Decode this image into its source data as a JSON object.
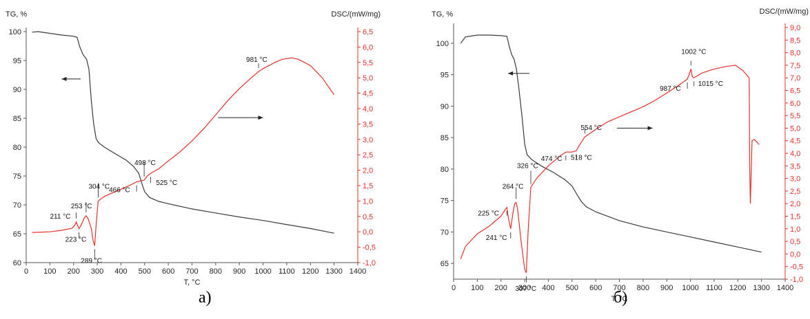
{
  "chart_data": [
    {
      "type": "line",
      "caption": "а)",
      "left_axis_label": "TG, %",
      "right_axis_label": "DSC/(mW/mg)",
      "xlabel": "T, °C",
      "xlim": [
        0,
        1400
      ],
      "x_ticks": [
        "0",
        "100",
        "200",
        "300",
        "400",
        "500",
        "600",
        "700",
        "800",
        "900",
        "1000",
        "1100",
        "1200",
        "1300",
        "1400"
      ],
      "ylim_left": [
        60,
        100
      ],
      "y_ticks_left": [
        "60",
        "65",
        "70",
        "75",
        "80",
        "85",
        "90",
        "95",
        "100"
      ],
      "ylim_right": [
        -1.0,
        6.5
      ],
      "y_ticks_right": [
        "-1,0",
        "-0,5",
        "0,0",
        "0,5",
        "1,0",
        "1,5",
        "2,0",
        "2,5",
        "3,0",
        "3,5",
        "4,0",
        "4,5",
        "5,0",
        "5,5",
        "6,0",
        "6,5"
      ],
      "colors": {
        "tg": "#3a3a3a",
        "dsc": "#e8302a"
      },
      "series": [
        {
          "axis": "left",
          "points": [
            [
              25,
              99.9
            ],
            [
              50,
              100.0
            ],
            [
              100,
              99.7
            ],
            [
              150,
              99.4
            ],
            [
              200,
              99.2
            ],
            [
              215,
              99.0
            ],
            [
              225,
              97.5
            ],
            [
              240,
              96.0
            ],
            [
              255,
              95.2
            ],
            [
              265,
              93.5
            ],
            [
              275,
              88.0
            ],
            [
              285,
              84.0
            ],
            [
              295,
              81.5
            ],
            [
              305,
              80.8
            ],
            [
              330,
              80.0
            ],
            [
              370,
              79.0
            ],
            [
              420,
              77.8
            ],
            [
              450,
              76.8
            ],
            [
              475,
              75.5
            ],
            [
              490,
              73.5
            ],
            [
              500,
              72.3
            ],
            [
              520,
              71.3
            ],
            [
              560,
              70.6
            ],
            [
              600,
              70.2
            ],
            [
              700,
              69.3
            ],
            [
              800,
              68.6
            ],
            [
              900,
              67.9
            ],
            [
              1000,
              67.3
            ],
            [
              1100,
              66.6
            ],
            [
              1200,
              65.9
            ],
            [
              1300,
              65.1
            ]
          ]
        },
        {
          "axis": "right",
          "points": [
            [
              25,
              -0.02
            ],
            [
              100,
              0.0
            ],
            [
              150,
              0.05
            ],
            [
              195,
              0.12
            ],
            [
              208,
              0.25
            ],
            [
              211,
              0.32
            ],
            [
              223,
              0.1
            ],
            [
              232,
              0.22
            ],
            [
              245,
              0.45
            ],
            [
              253,
              0.52
            ],
            [
              262,
              0.42
            ],
            [
              275,
              0.1
            ],
            [
              283,
              -0.3
            ],
            [
              289,
              -0.45
            ],
            [
              296,
              0.3
            ],
            [
              304,
              1.0
            ],
            [
              330,
              1.15
            ],
            [
              360,
              1.25
            ],
            [
              400,
              1.38
            ],
            [
              440,
              1.52
            ],
            [
              466,
              1.62
            ],
            [
              480,
              1.65
            ],
            [
              498,
              1.68
            ],
            [
              510,
              1.8
            ],
            [
              525,
              1.9
            ],
            [
              560,
              2.05
            ],
            [
              600,
              2.3
            ],
            [
              650,
              2.6
            ],
            [
              700,
              2.95
            ],
            [
              750,
              3.35
            ],
            [
              800,
              3.8
            ],
            [
              850,
              4.25
            ],
            [
              900,
              4.65
            ],
            [
              950,
              5.0
            ],
            [
              981,
              5.2
            ],
            [
              1000,
              5.3
            ],
            [
              1050,
              5.5
            ],
            [
              1080,
              5.6
            ],
            [
              1120,
              5.65
            ],
            [
              1150,
              5.6
            ],
            [
              1200,
              5.4
            ],
            [
              1250,
              5.0
            ],
            [
              1300,
              4.45
            ]
          ]
        }
      ],
      "annotations": [
        {
          "text": "211 °C",
          "x": 211,
          "y": 0.32
        },
        {
          "text": "253 °C",
          "x": 253,
          "y": 0.52
        },
        {
          "text": "304 °C",
          "x": 304,
          "y": 1.0
        },
        {
          "text": "223 °C",
          "x": 223,
          "y": 0.1
        },
        {
          "text": "289 °C",
          "x": 289,
          "y": -0.45
        },
        {
          "text": "498 °C",
          "x": 498,
          "y": 1.68
        },
        {
          "text": "466 °C",
          "x": 466,
          "y": 1.62
        },
        {
          "text": "525 °C",
          "x": 525,
          "y": 1.9
        },
        {
          "text": "981 °C",
          "x": 981,
          "y": 5.2
        }
      ],
      "arrows": [
        {
          "direction": "left",
          "x_from": 230,
          "x_to": 150,
          "y_left": 91.8
        },
        {
          "direction": "right",
          "x_from": 810,
          "x_to": 1000,
          "y_left": 85.1
        }
      ]
    },
    {
      "type": "line",
      "caption": "б)",
      "left_axis_label": "TG, %",
      "right_axis_label": "DSC/(mW/mg)",
      "xlabel": "T, °C",
      "xlim": [
        0,
        1400
      ],
      "x_ticks": [
        "0",
        "100",
        "200",
        "300",
        "400",
        "500",
        "600",
        "700",
        "800",
        "900",
        "1000",
        "1100",
        "1200",
        "1300",
        "1400"
      ],
      "ylim_left": [
        62.5,
        102.5
      ],
      "y_ticks_left": [
        "65",
        "70",
        "75",
        "80",
        "85",
        "90",
        "95",
        "100"
      ],
      "ylim_right": [
        -1.0,
        9.0
      ],
      "y_ticks_right": [
        "-1,0",
        "-0,5",
        "0,0",
        "0,5",
        "1,0",
        "1,5",
        "2,0",
        "2,5",
        "3,0",
        "3,5",
        "4,0",
        "4,5",
        "5,0",
        "5,5",
        "6,0",
        "6,5",
        "7,0",
        "7,5",
        "8,0",
        "8,5",
        "9,0"
      ],
      "colors": {
        "tg": "#3a3a3a",
        "dsc": "#e8302a"
      },
      "series": [
        {
          "axis": "left",
          "points": [
            [
              30,
              100.0
            ],
            [
              50,
              101.0
            ],
            [
              100,
              101.3
            ],
            [
              150,
              101.3
            ],
            [
              200,
              101.2
            ],
            [
              225,
              101.1
            ],
            [
              235,
              99.5
            ],
            [
              245,
              98.2
            ],
            [
              255,
              97.5
            ],
            [
              265,
              96.0
            ],
            [
              275,
              93.0
            ],
            [
              290,
              88.0
            ],
            [
              300,
              84.0
            ],
            [
              310,
              82.3
            ],
            [
              330,
              81.5
            ],
            [
              370,
              80.5
            ],
            [
              420,
              79.5
            ],
            [
              470,
              78.3
            ],
            [
              500,
              77.3
            ],
            [
              520,
              76.0
            ],
            [
              540,
              74.8
            ],
            [
              560,
              74.0
            ],
            [
              600,
              73.2
            ],
            [
              700,
              71.8
            ],
            [
              800,
              70.8
            ],
            [
              900,
              70.0
            ],
            [
              1000,
              69.2
            ],
            [
              1100,
              68.4
            ],
            [
              1200,
              67.6
            ],
            [
              1300,
              66.8
            ]
          ]
        },
        {
          "axis": "right",
          "points": [
            [
              30,
              -0.2
            ],
            [
              50,
              0.3
            ],
            [
              100,
              0.8
            ],
            [
              150,
              1.1
            ],
            [
              200,
              1.5
            ],
            [
              220,
              1.8
            ],
            [
              225,
              1.85
            ],
            [
              232,
              1.4
            ],
            [
              241,
              1.0
            ],
            [
              250,
              1.6
            ],
            [
              258,
              2.0
            ],
            [
              264,
              2.05
            ],
            [
              270,
              1.8
            ],
            [
              285,
              0.5
            ],
            [
              300,
              -0.6
            ],
            [
              307,
              -0.75
            ],
            [
              314,
              0.8
            ],
            [
              326,
              2.65
            ],
            [
              350,
              3.0
            ],
            [
              400,
              3.5
            ],
            [
              450,
              3.9
            ],
            [
              474,
              4.05
            ],
            [
              500,
              4.05
            ],
            [
              518,
              4.1
            ],
            [
              530,
              4.3
            ],
            [
              554,
              4.65
            ],
            [
              600,
              4.95
            ],
            [
              650,
              5.25
            ],
            [
              700,
              5.45
            ],
            [
              750,
              5.65
            ],
            [
              800,
              5.85
            ],
            [
              850,
              6.1
            ],
            [
              900,
              6.4
            ],
            [
              950,
              6.7
            ],
            [
              987,
              6.95
            ],
            [
              995,
              7.15
            ],
            [
              1002,
              7.35
            ],
            [
              1008,
              7.05
            ],
            [
              1015,
              7.0
            ],
            [
              1050,
              7.2
            ],
            [
              1100,
              7.35
            ],
            [
              1150,
              7.45
            ],
            [
              1190,
              7.5
            ],
            [
              1220,
              7.3
            ],
            [
              1248,
              7.0
            ],
            [
              1250,
              3.5
            ],
            [
              1253,
              2.0
            ],
            [
              1256,
              3.0
            ],
            [
              1260,
              4.5
            ],
            [
              1270,
              4.55
            ],
            [
              1290,
              4.35
            ]
          ]
        }
      ],
      "annotations": [
        {
          "text": "225 °C",
          "x": 225,
          "y": 1.85
        },
        {
          "text": "241 °C",
          "x": 241,
          "y": 1.0
        },
        {
          "text": "264 °C",
          "x": 264,
          "y": 2.05
        },
        {
          "text": "307 °C",
          "x": 307,
          "y": -0.75
        },
        {
          "text": "326 °C",
          "x": 326,
          "y": 2.65
        },
        {
          "text": "474 °C",
          "x": 474,
          "y": 4.05
        },
        {
          "text": "518 °C",
          "x": 518,
          "y": 4.1
        },
        {
          "text": "554 °C",
          "x": 554,
          "y": 4.65
        },
        {
          "text": "987 °C",
          "x": 987,
          "y": 6.95
        },
        {
          "text": "1002 °C",
          "x": 1002,
          "y": 7.35
        },
        {
          "text": "1015 °C",
          "x": 1015,
          "y": 7.0
        }
      ],
      "arrows": [
        {
          "direction": "left",
          "x_from": 320,
          "x_to": 230,
          "y_left": 95.2
        },
        {
          "direction": "right",
          "x_from": 690,
          "x_to": 840,
          "y_left": 86.5
        }
      ]
    }
  ]
}
